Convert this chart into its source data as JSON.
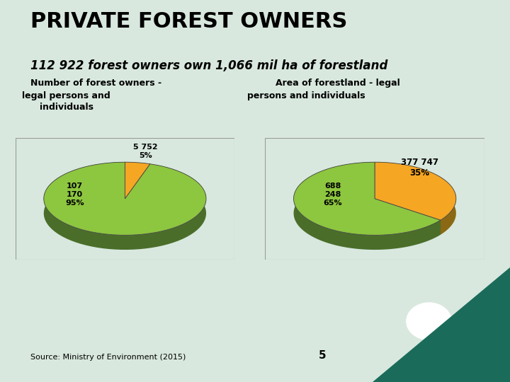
{
  "title": "PRIVATE FOREST OWNERS",
  "subtitle": "112 922 forest owners own 1,066 mil ha of forestland",
  "bg_color": "#d8e8de",
  "pie1_title_line1": "Number of forest owners -",
  "pie1_title_line2": "legal persons and",
  "pie1_title_line3": "individuals",
  "pie1_values": [
    95,
    5
  ],
  "pie1_label_green": "107\n170\n95%",
  "pie1_label_gold": "5 752\n5%",
  "pie1_green": "#8dc63f",
  "pie1_gold": "#f5a623",
  "pie1_dark_green": "#4a6e2a",
  "pie1_dark_gold": "#8b6914",
  "pie2_title_line1": "Area of forestland - legal",
  "pie2_title_line2": "persons and individuals",
  "pie2_values": [
    65,
    35
  ],
  "pie2_label_green": "688\n248\n65%",
  "pie2_label_gold": "377 747\n35%",
  "pie2_green": "#8dc63f",
  "pie2_gold": "#f5a623",
  "pie2_dark_green": "#4a6e2a",
  "pie2_dark_gold": "#8b6914",
  "source_text": "Source: Ministry of Environment (2015)",
  "page_num": "5",
  "teal_color": "#1a6b5a",
  "box_edge_color": "#999999",
  "title_fontsize": 22,
  "subtitle_fontsize": 12,
  "pie_title_fontsize": 9,
  "label_fontsize": 8,
  "source_fontsize": 8
}
